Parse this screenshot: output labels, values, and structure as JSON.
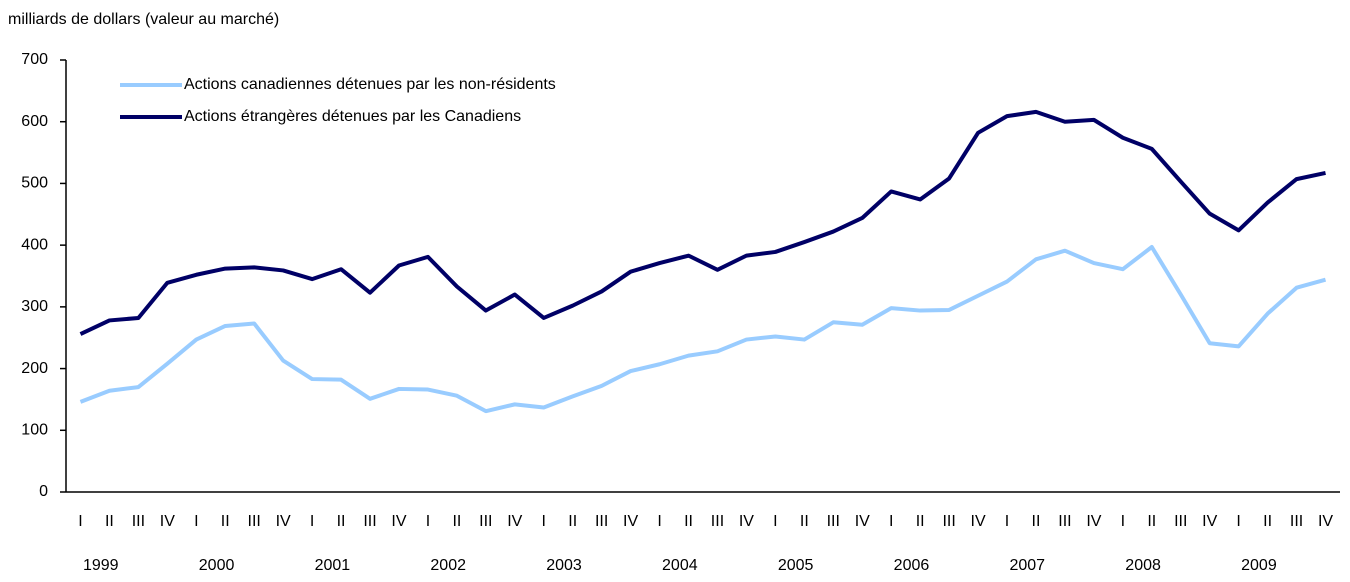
{
  "chart_data": {
    "type": "line",
    "y_axis_label": "milliards de dollars (valeur au marché)",
    "categories": [
      "I",
      "II",
      "III",
      "IV",
      "I",
      "II",
      "III",
      "IV",
      "I",
      "II",
      "III",
      "IV",
      "I",
      "II",
      "III",
      "IV",
      "I",
      "II",
      "III",
      "IV",
      "I",
      "II",
      "III",
      "IV",
      "I",
      "II",
      "III",
      "IV",
      "I",
      "II",
      "III",
      "IV",
      "I",
      "II",
      "III",
      "IV",
      "I",
      "II",
      "III",
      "IV",
      "I",
      "II",
      "III",
      "IV"
    ],
    "year_labels": [
      "1999",
      "2000",
      "2001",
      "2002",
      "2003",
      "2004",
      "2005",
      "2006",
      "2007",
      "2008",
      "2009"
    ],
    "series": [
      {
        "name": "Actions canadiennes détenues par les non-résidents",
        "color": "#99ccff",
        "values": [
          146,
          164,
          170,
          208,
          247,
          269,
          273,
          213,
          183,
          182,
          151,
          167,
          166,
          156,
          131,
          142,
          137,
          155,
          172,
          196,
          207,
          221,
          228,
          247,
          252,
          247,
          275,
          271,
          298,
          294,
          295,
          318,
          341,
          377,
          391,
          371,
          361,
          397,
          320,
          241,
          236,
          289,
          331,
          344
        ]
      },
      {
        "name": "Actions étrangères détenues par les Canadiens",
        "color": "#000066",
        "values": [
          256,
          278,
          282,
          339,
          352,
          362,
          364,
          359,
          345,
          361,
          323,
          367,
          381,
          333,
          294,
          320,
          282,
          302,
          325,
          357,
          371,
          383,
          360,
          383,
          389,
          405,
          422,
          444,
          487,
          474,
          508,
          582,
          609,
          616,
          600,
          603,
          574,
          556,
          503,
          451,
          424,
          469,
          507,
          517
        ]
      }
    ],
    "ylim": [
      0,
      700
    ],
    "yticks": [
      0,
      100,
      200,
      300,
      400,
      500,
      600,
      700
    ],
    "grid": false,
    "legend": "top-left"
  }
}
